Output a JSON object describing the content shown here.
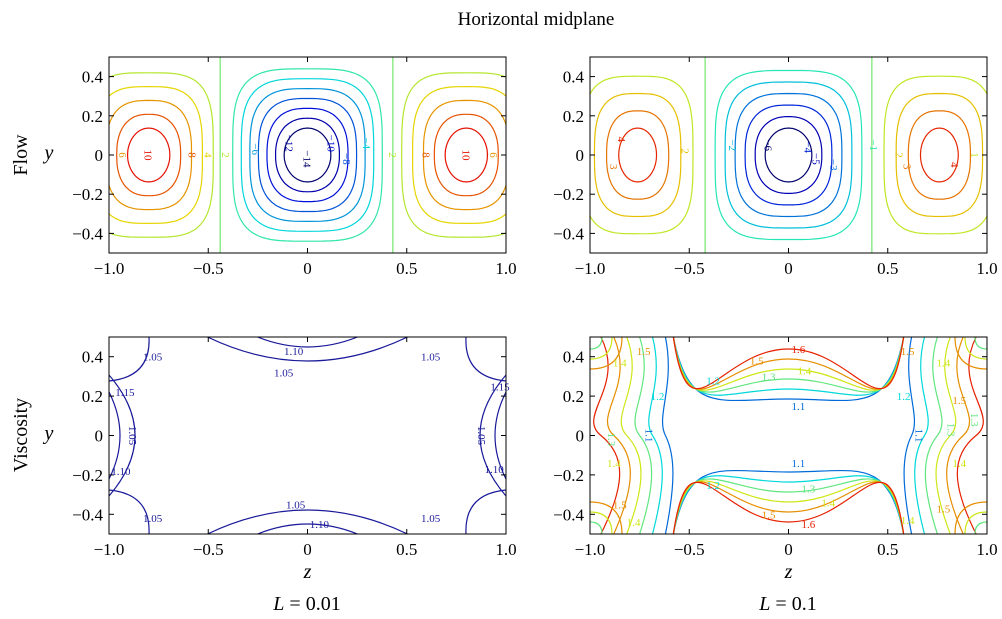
{
  "figure_title": "Horizontal midplane",
  "row_labels": [
    "Flow",
    "Viscosity"
  ],
  "column_captions": [
    "L = 0.01",
    "L = 0.1"
  ],
  "chart_data": [
    {
      "type": "contour",
      "row": "Flow",
      "column": "L = 0.01",
      "xlabel": "",
      "ylabel": "y",
      "xlim": [
        -1.0,
        1.0
      ],
      "ylim": [
        -0.5,
        0.5
      ],
      "xticks": [
        "−1.0",
        "−0.5",
        "0",
        "0.5",
        "1.0"
      ],
      "yticks": [
        "0.4",
        "0.2",
        "0",
        "−0.2",
        "−0.4"
      ],
      "cells": [
        {
          "center": -0.8,
          "sign": 1,
          "ext": 0.38,
          "levels": [
            0,
            2,
            4,
            6,
            8,
            10
          ]
        },
        {
          "center": 0.0,
          "sign": -1,
          "ext": 0.42,
          "levels": [
            0,
            -2,
            -4,
            -6,
            -8,
            -10,
            -12,
            -14
          ]
        },
        {
          "center": 0.8,
          "sign": 1,
          "ext": 0.38,
          "levels": [
            0,
            2,
            4,
            6,
            8,
            10
          ]
        }
      ],
      "labels": [
        {
          "text": "10",
          "x": -0.8,
          "y": 0.0
        },
        {
          "text": "8",
          "x": -0.58,
          "y": 0.0
        },
        {
          "text": "6",
          "x": -0.93,
          "y": 0.0
        },
        {
          "text": "4",
          "x": -0.5,
          "y": 0.0
        },
        {
          "text": "2",
          "x": -0.41,
          "y": 0.0
        },
        {
          "text": "−14",
          "x": 0.0,
          "y": -0.02
        },
        {
          "text": "−12",
          "x": -0.09,
          "y": 0.06
        },
        {
          "text": "−10",
          "x": 0.12,
          "y": 0.06
        },
        {
          "text": "−8",
          "x": 0.2,
          "y": -0.02
        },
        {
          "text": "−6",
          "x": -0.26,
          "y": 0.03
        },
        {
          "text": "−4",
          "x": 0.3,
          "y": 0.06
        },
        {
          "text": "2",
          "x": 0.43,
          "y": 0.0
        },
        {
          "text": "8",
          "x": 0.6,
          "y": 0.0
        },
        {
          "text": "10",
          "x": 0.8,
          "y": 0.0
        },
        {
          "text": "6",
          "x": 0.94,
          "y": 0.0
        }
      ]
    },
    {
      "type": "contour",
      "row": "Flow",
      "column": "L = 0.1",
      "xlabel": "",
      "ylabel": "",
      "xlim": [
        -1.0,
        1.0
      ],
      "ylim": [
        -0.5,
        0.5
      ],
      "xticks": [
        "−1.0",
        "−0.5",
        "0",
        "0.5",
        "1.0"
      ],
      "yticks": [
        "0.4",
        "0.2",
        "0",
        "−0.2",
        "−0.4"
      ],
      "cells": [
        {
          "center": -0.76,
          "sign": 1,
          "ext": 0.34,
          "levels": [
            0,
            1,
            2,
            3,
            4
          ]
        },
        {
          "center": 0.0,
          "sign": -1,
          "ext": 0.42,
          "levels": [
            0,
            -1,
            -2,
            -3,
            -4,
            -5,
            -6
          ]
        },
        {
          "center": 0.76,
          "sign": 1,
          "ext": 0.34,
          "levels": [
            0,
            1,
            2,
            3,
            4
          ]
        }
      ],
      "labels": [
        {
          "text": "4",
          "x": -0.84,
          "y": 0.08
        },
        {
          "text": "3",
          "x": -0.88,
          "y": -0.06
        },
        {
          "text": "2",
          "x": -0.52,
          "y": 0.02
        },
        {
          "text": "−6",
          "x": -0.1,
          "y": 0.05
        },
        {
          "text": "−4",
          "x": 0.1,
          "y": 0.04
        },
        {
          "text": "−5",
          "x": 0.14,
          "y": -0.02
        },
        {
          "text": "−3",
          "x": 0.23,
          "y": -0.05
        },
        {
          "text": "−2",
          "x": -0.28,
          "y": 0.05
        },
        {
          "text": "−1",
          "x": 0.43,
          "y": 0.05
        },
        {
          "text": "3",
          "x": 0.6,
          "y": -0.06
        },
        {
          "text": "2",
          "x": 0.56,
          "y": 0.0
        },
        {
          "text": "4",
          "x": 0.84,
          "y": -0.05
        },
        {
          "text": "1",
          "x": 0.94,
          "y": 0.0
        }
      ]
    },
    {
      "type": "contour",
      "row": "Viscosity",
      "column": "L = 0.01",
      "xlabel": "z",
      "ylabel": "y",
      "xlim": [
        -1.0,
        1.0
      ],
      "ylim": [
        -0.5,
        0.5
      ],
      "xticks": [
        "−1.0",
        "−0.5",
        "0",
        "0.5",
        "1.0"
      ],
      "yticks": [
        "0.4",
        "0.2",
        "0",
        "−0.2",
        "−0.4"
      ],
      "labels": [
        {
          "text": "1.05",
          "x": -0.78,
          "y": 0.4
        },
        {
          "text": "1.10",
          "x": -0.07,
          "y": 0.43
        },
        {
          "text": "1.05",
          "x": -0.12,
          "y": 0.32
        },
        {
          "text": "1.05",
          "x": 0.62,
          "y": 0.4
        },
        {
          "text": "1.15",
          "x": -0.92,
          "y": 0.22
        },
        {
          "text": "1.05",
          "x": -0.88,
          "y": 0.0
        },
        {
          "text": "1.10",
          "x": -0.94,
          "y": -0.18
        },
        {
          "text": "1.15",
          "x": 0.97,
          "y": 0.25
        },
        {
          "text": "1.05",
          "x": 0.88,
          "y": 0.0
        },
        {
          "text": "1.10",
          "x": 0.94,
          "y": -0.17
        },
        {
          "text": "1.05",
          "x": -0.78,
          "y": -0.42
        },
        {
          "text": "1.05",
          "x": -0.06,
          "y": -0.35
        },
        {
          "text": "1.10",
          "x": 0.06,
          "y": -0.45
        },
        {
          "text": "1.05",
          "x": 0.62,
          "y": -0.42
        }
      ]
    },
    {
      "type": "contour",
      "row": "Viscosity",
      "column": "L = 0.1",
      "xlabel": "z",
      "ylabel": "",
      "xlim": [
        -1.0,
        1.0
      ],
      "ylim": [
        -0.5,
        0.5
      ],
      "xticks": [
        "−1.0",
        "−0.5",
        "0",
        "0.5",
        "1.0"
      ],
      "yticks": [
        "0.4",
        "0.2",
        "0",
        "−0.2",
        "−0.4"
      ],
      "labels": [
        {
          "text": "1.5",
          "x": -0.73,
          "y": 0.43
        },
        {
          "text": "1.4",
          "x": -0.85,
          "y": 0.37
        },
        {
          "text": "1.2",
          "x": -0.66,
          "y": 0.2
        },
        {
          "text": "1.1",
          "x": -0.7,
          "y": 0.0
        },
        {
          "text": "1.3",
          "x": -0.89,
          "y": -0.02
        },
        {
          "text": "1.4",
          "x": -0.88,
          "y": -0.14
        },
        {
          "text": "1.5",
          "x": -0.85,
          "y": -0.35
        },
        {
          "text": "1.4",
          "x": -0.78,
          "y": -0.44
        },
        {
          "text": "1.6",
          "x": 0.05,
          "y": 0.44
        },
        {
          "text": "1.5",
          "x": -0.16,
          "y": 0.38
        },
        {
          "text": "1.4",
          "x": 0.08,
          "y": 0.33
        },
        {
          "text": "1.3",
          "x": -0.1,
          "y": 0.3
        },
        {
          "text": "1.2",
          "x": -0.38,
          "y": 0.28
        },
        {
          "text": "1.1",
          "x": 0.05,
          "y": 0.15
        },
        {
          "text": "1.1",
          "x": 0.05,
          "y": -0.14
        },
        {
          "text": "1.3",
          "x": 0.1,
          "y": -0.27
        },
        {
          "text": "1.2",
          "x": -0.38,
          "y": -0.25
        },
        {
          "text": "1.4",
          "x": 0.2,
          "y": -0.34
        },
        {
          "text": "1.5",
          "x": -0.1,
          "y": -0.4
        },
        {
          "text": "1.6",
          "x": 0.1,
          "y": -0.45
        },
        {
          "text": "1.5",
          "x": 0.6,
          "y": 0.43
        },
        {
          "text": "1.4",
          "x": 0.78,
          "y": 0.37
        },
        {
          "text": "1.2",
          "x": 0.58,
          "y": 0.2
        },
        {
          "text": "1.1",
          "x": 0.66,
          "y": 0.0
        },
        {
          "text": "1.3",
          "x": 0.82,
          "y": 0.03
        },
        {
          "text": "1.4",
          "x": 0.86,
          "y": -0.14
        },
        {
          "text": "1.5",
          "x": 0.86,
          "y": 0.18
        },
        {
          "text": "1.3",
          "x": 0.94,
          "y": 0.08
        },
        {
          "text": "1.4",
          "x": 0.6,
          "y": -0.43
        },
        {
          "text": "1.5",
          "x": 0.78,
          "y": -0.37
        }
      ]
    }
  ]
}
